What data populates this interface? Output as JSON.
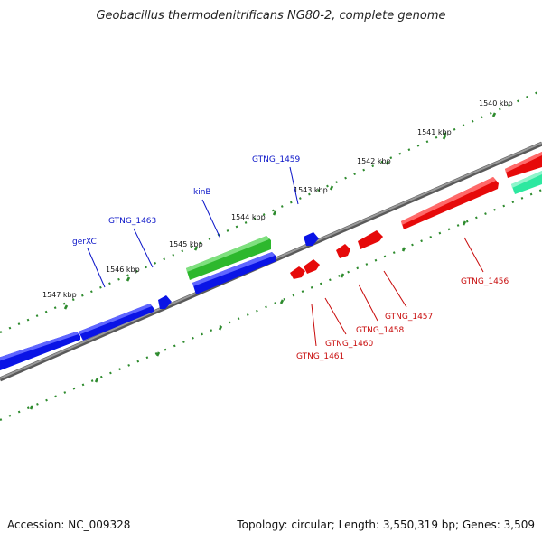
{
  "title": "Geobacillus thermodenitrificans NG80-2, complete genome",
  "footer": {
    "accession": "Accession: NC_009328",
    "topology": "Topology: circular; Length: 3,550,319 bp; Genes: 3,509"
  },
  "colors": {
    "backbone": "#808080",
    "tick": "#2e8b2e",
    "reverse_strand_gene": "#0a14e6",
    "forward_strand_gene": "#e60a0a",
    "rna_gene": "#2db82d",
    "other_gene": "#2de8a0",
    "reverse_label": "#0a14c8",
    "forward_label": "#c80a0a"
  },
  "scale_labels": [
    "1540 kbp",
    "1541 kbp",
    "1542 kbp",
    "1543 kbp",
    "1544 kbp",
    "1545 kbp",
    "1546 kbp",
    "1547 kbp"
  ],
  "gene_labels": {
    "reverse": [
      "GTNG_1459",
      "kinB",
      "GTNG_1463",
      "gerXC"
    ],
    "forward": [
      "GTNG_1456",
      "GTNG_1457",
      "GTNG_1458",
      "GTNG_1460",
      "GTNG_1461"
    ]
  }
}
